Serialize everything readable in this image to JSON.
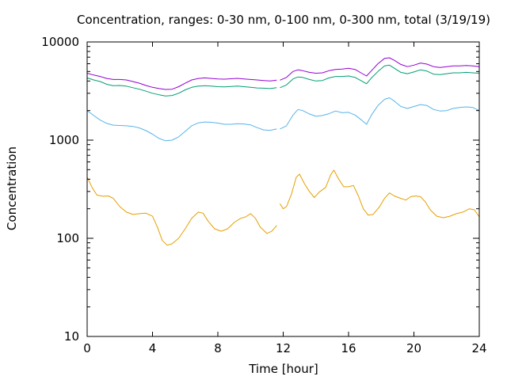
{
  "chart_data": {
    "type": "line",
    "title": "Concentration, ranges: 0-30 nm, 0-100 nm, 0-300 nm, total (3/19/19)",
    "xlabel": "Time [hour]",
    "ylabel": "Concentration",
    "xlim": [
      0,
      24
    ],
    "ylim": [
      10,
      10000
    ],
    "yscale": "log",
    "grid": false,
    "legend": "none",
    "xticks": [
      0,
      4,
      8,
      12,
      16,
      20,
      24
    ],
    "xtick_labels": [
      "0",
      "4",
      "8",
      "12",
      "16",
      "20",
      "24"
    ],
    "yticks": [
      10,
      100,
      1000,
      10000
    ],
    "ytick_labels": [
      "10",
      "100",
      "1000",
      "10000"
    ],
    "series": [
      {
        "color": "#e69f00",
        "segments": [
          [
            [
              0,
              420
            ],
            [
              0.3,
              330
            ],
            [
              0.6,
              275
            ],
            [
              1,
              268
            ],
            [
              1.3,
              270
            ],
            [
              1.6,
              255
            ],
            [
              2,
              210
            ],
            [
              2.4,
              185
            ],
            [
              2.8,
              175
            ],
            [
              3.2,
              178
            ],
            [
              3.6,
              180
            ],
            [
              4,
              168
            ],
            [
              4.3,
              130
            ],
            [
              4.6,
              95
            ],
            [
              4.9,
              85
            ],
            [
              5.2,
              88
            ],
            [
              5.6,
              100
            ],
            [
              6,
              125
            ],
            [
              6.4,
              160
            ],
            [
              6.8,
              185
            ],
            [
              7.1,
              180
            ],
            [
              7.4,
              150
            ],
            [
              7.8,
              125
            ],
            [
              8.2,
              118
            ],
            [
              8.6,
              125
            ],
            [
              9,
              145
            ],
            [
              9.4,
              160
            ],
            [
              9.7,
              165
            ],
            [
              10,
              178
            ],
            [
              10.3,
              160
            ],
            [
              10.6,
              130
            ],
            [
              11,
              112
            ],
            [
              11.3,
              118
            ],
            [
              11.6,
              135
            ]
          ],
          [
            [
              11.8,
              225
            ],
            [
              12,
              200
            ],
            [
              12.2,
              210
            ],
            [
              12.5,
              280
            ],
            [
              12.8,
              420
            ],
            [
              13,
              450
            ],
            [
              13.3,
              360
            ],
            [
              13.6,
              300
            ],
            [
              13.9,
              260
            ],
            [
              14.2,
              295
            ],
            [
              14.6,
              330
            ],
            [
              14.9,
              440
            ],
            [
              15.1,
              495
            ],
            [
              15.4,
              400
            ],
            [
              15.7,
              335
            ],
            [
              16,
              335
            ],
            [
              16.3,
              345
            ],
            [
              16.6,
              270
            ],
            [
              16.9,
              200
            ],
            [
              17.2,
              172
            ],
            [
              17.5,
              175
            ],
            [
              17.9,
              210
            ],
            [
              18.2,
              255
            ],
            [
              18.5,
              290
            ],
            [
              18.8,
              270
            ],
            [
              19.2,
              255
            ],
            [
              19.5,
              245
            ],
            [
              19.8,
              265
            ],
            [
              20.1,
              270
            ],
            [
              20.4,
              265
            ],
            [
              20.7,
              235
            ],
            [
              21,
              195
            ],
            [
              21.4,
              168
            ],
            [
              21.8,
              162
            ],
            [
              22.2,
              168
            ],
            [
              22.6,
              178
            ],
            [
              23,
              185
            ],
            [
              23.4,
              200
            ],
            [
              23.7,
              195
            ],
            [
              24,
              165
            ]
          ]
        ]
      },
      {
        "color": "#56b4e9",
        "segments": [
          [
            [
              0,
              2000
            ],
            [
              0.4,
              1780
            ],
            [
              0.8,
              1600
            ],
            [
              1.2,
              1480
            ],
            [
              1.6,
              1420
            ],
            [
              2,
              1410
            ],
            [
              2.4,
              1400
            ],
            [
              2.8,
              1380
            ],
            [
              3.2,
              1330
            ],
            [
              3.6,
              1250
            ],
            [
              4,
              1150
            ],
            [
              4.4,
              1040
            ],
            [
              4.8,
              985
            ],
            [
              5.2,
              1000
            ],
            [
              5.6,
              1080
            ],
            [
              6,
              1230
            ],
            [
              6.4,
              1400
            ],
            [
              6.8,
              1500
            ],
            [
              7.2,
              1530
            ],
            [
              7.6,
              1520
            ],
            [
              8,
              1490
            ],
            [
              8.4,
              1450
            ],
            [
              8.8,
              1450
            ],
            [
              9.2,
              1470
            ],
            [
              9.6,
              1460
            ],
            [
              10,
              1430
            ],
            [
              10.4,
              1340
            ],
            [
              10.8,
              1270
            ],
            [
              11.2,
              1260
            ],
            [
              11.6,
              1300
            ]
          ],
          [
            [
              11.8,
              1300
            ],
            [
              12.2,
              1400
            ],
            [
              12.6,
              1800
            ],
            [
              12.9,
              2050
            ],
            [
              13.2,
              2000
            ],
            [
              13.6,
              1850
            ],
            [
              14,
              1750
            ],
            [
              14.4,
              1780
            ],
            [
              14.8,
              1860
            ],
            [
              15.2,
              1980
            ],
            [
              15.6,
              1900
            ],
            [
              16,
              1920
            ],
            [
              16.4,
              1800
            ],
            [
              16.8,
              1600
            ],
            [
              17.1,
              1450
            ],
            [
              17.4,
              1800
            ],
            [
              17.8,
              2250
            ],
            [
              18.2,
              2600
            ],
            [
              18.5,
              2700
            ],
            [
              18.8,
              2500
            ],
            [
              19.2,
              2200
            ],
            [
              19.6,
              2100
            ],
            [
              20,
              2200
            ],
            [
              20.4,
              2300
            ],
            [
              20.8,
              2250
            ],
            [
              21.2,
              2050
            ],
            [
              21.6,
              1980
            ],
            [
              22,
              2000
            ],
            [
              22.4,
              2100
            ],
            [
              22.8,
              2150
            ],
            [
              23.2,
              2180
            ],
            [
              23.6,
              2150
            ],
            [
              24,
              2000
            ]
          ]
        ]
      },
      {
        "color": "#009e73",
        "segments": [
          [
            [
              0,
              4300
            ],
            [
              0.4,
              4100
            ],
            [
              0.8,
              3950
            ],
            [
              1.2,
              3700
            ],
            [
              1.6,
              3580
            ],
            [
              2,
              3600
            ],
            [
              2.4,
              3550
            ],
            [
              2.8,
              3420
            ],
            [
              3.2,
              3300
            ],
            [
              3.6,
              3150
            ],
            [
              4,
              3000
            ],
            [
              4.4,
              2900
            ],
            [
              4.8,
              2820
            ],
            [
              5.2,
              2850
            ],
            [
              5.6,
              3000
            ],
            [
              6,
              3250
            ],
            [
              6.4,
              3450
            ],
            [
              6.8,
              3550
            ],
            [
              7.2,
              3580
            ],
            [
              7.6,
              3550
            ],
            [
              8,
              3500
            ],
            [
              8.4,
              3480
            ],
            [
              8.8,
              3520
            ],
            [
              9.2,
              3550
            ],
            [
              9.6,
              3500
            ],
            [
              10,
              3450
            ],
            [
              10.4,
              3400
            ],
            [
              10.8,
              3380
            ],
            [
              11.2,
              3350
            ],
            [
              11.6,
              3420
            ]
          ],
          [
            [
              11.8,
              3420
            ],
            [
              12.2,
              3650
            ],
            [
              12.6,
              4200
            ],
            [
              12.9,
              4400
            ],
            [
              13.2,
              4350
            ],
            [
              13.6,
              4150
            ],
            [
              14,
              4000
            ],
            [
              14.4,
              4050
            ],
            [
              14.8,
              4300
            ],
            [
              15.2,
              4450
            ],
            [
              15.6,
              4450
            ],
            [
              16,
              4500
            ],
            [
              16.4,
              4350
            ],
            [
              16.8,
              4000
            ],
            [
              17.1,
              3750
            ],
            [
              17.4,
              4300
            ],
            [
              17.8,
              5000
            ],
            [
              18.2,
              5700
            ],
            [
              18.5,
              5800
            ],
            [
              18.8,
              5400
            ],
            [
              19.2,
              4900
            ],
            [
              19.6,
              4750
            ],
            [
              20,
              4950
            ],
            [
              20.4,
              5200
            ],
            [
              20.8,
              5050
            ],
            [
              21.2,
              4700
            ],
            [
              21.6,
              4650
            ],
            [
              22,
              4750
            ],
            [
              22.4,
              4850
            ],
            [
              22.8,
              4850
            ],
            [
              23.2,
              4900
            ],
            [
              23.6,
              4850
            ],
            [
              24,
              4800
            ]
          ]
        ]
      },
      {
        "color": "#9400d3",
        "segments": [
          [
            [
              0,
              4800
            ],
            [
              0.4,
              4600
            ],
            [
              0.8,
              4450
            ],
            [
              1.2,
              4250
            ],
            [
              1.6,
              4150
            ],
            [
              2,
              4150
            ],
            [
              2.4,
              4100
            ],
            [
              2.8,
              3950
            ],
            [
              3.2,
              3800
            ],
            [
              3.6,
              3600
            ],
            [
              4,
              3450
            ],
            [
              4.4,
              3350
            ],
            [
              4.8,
              3280
            ],
            [
              5.2,
              3300
            ],
            [
              5.6,
              3500
            ],
            [
              6,
              3800
            ],
            [
              6.4,
              4100
            ],
            [
              6.8,
              4250
            ],
            [
              7.2,
              4300
            ],
            [
              7.6,
              4250
            ],
            [
              8,
              4200
            ],
            [
              8.4,
              4180
            ],
            [
              8.8,
              4220
            ],
            [
              9.2,
              4260
            ],
            [
              9.6,
              4200
            ],
            [
              10,
              4150
            ],
            [
              10.4,
              4100
            ],
            [
              10.8,
              4050
            ],
            [
              11.2,
              4000
            ],
            [
              11.6,
              4080
            ]
          ],
          [
            [
              11.8,
              4080
            ],
            [
              12.2,
              4350
            ],
            [
              12.6,
              5000
            ],
            [
              12.9,
              5200
            ],
            [
              13.2,
              5100
            ],
            [
              13.6,
              4900
            ],
            [
              14,
              4800
            ],
            [
              14.4,
              4850
            ],
            [
              14.8,
              5100
            ],
            [
              15.2,
              5250
            ],
            [
              15.6,
              5300
            ],
            [
              16,
              5400
            ],
            [
              16.4,
              5250
            ],
            [
              16.8,
              4800
            ],
            [
              17.1,
              4500
            ],
            [
              17.4,
              5100
            ],
            [
              17.8,
              6000
            ],
            [
              18.2,
              6800
            ],
            [
              18.5,
              6900
            ],
            [
              18.8,
              6500
            ],
            [
              19.2,
              5900
            ],
            [
              19.6,
              5600
            ],
            [
              20,
              5800
            ],
            [
              20.4,
              6100
            ],
            [
              20.8,
              5950
            ],
            [
              21.2,
              5600
            ],
            [
              21.6,
              5500
            ],
            [
              22,
              5600
            ],
            [
              22.4,
              5700
            ],
            [
              22.8,
              5700
            ],
            [
              23.2,
              5750
            ],
            [
              23.6,
              5700
            ],
            [
              24,
              5600
            ]
          ]
        ]
      }
    ]
  }
}
